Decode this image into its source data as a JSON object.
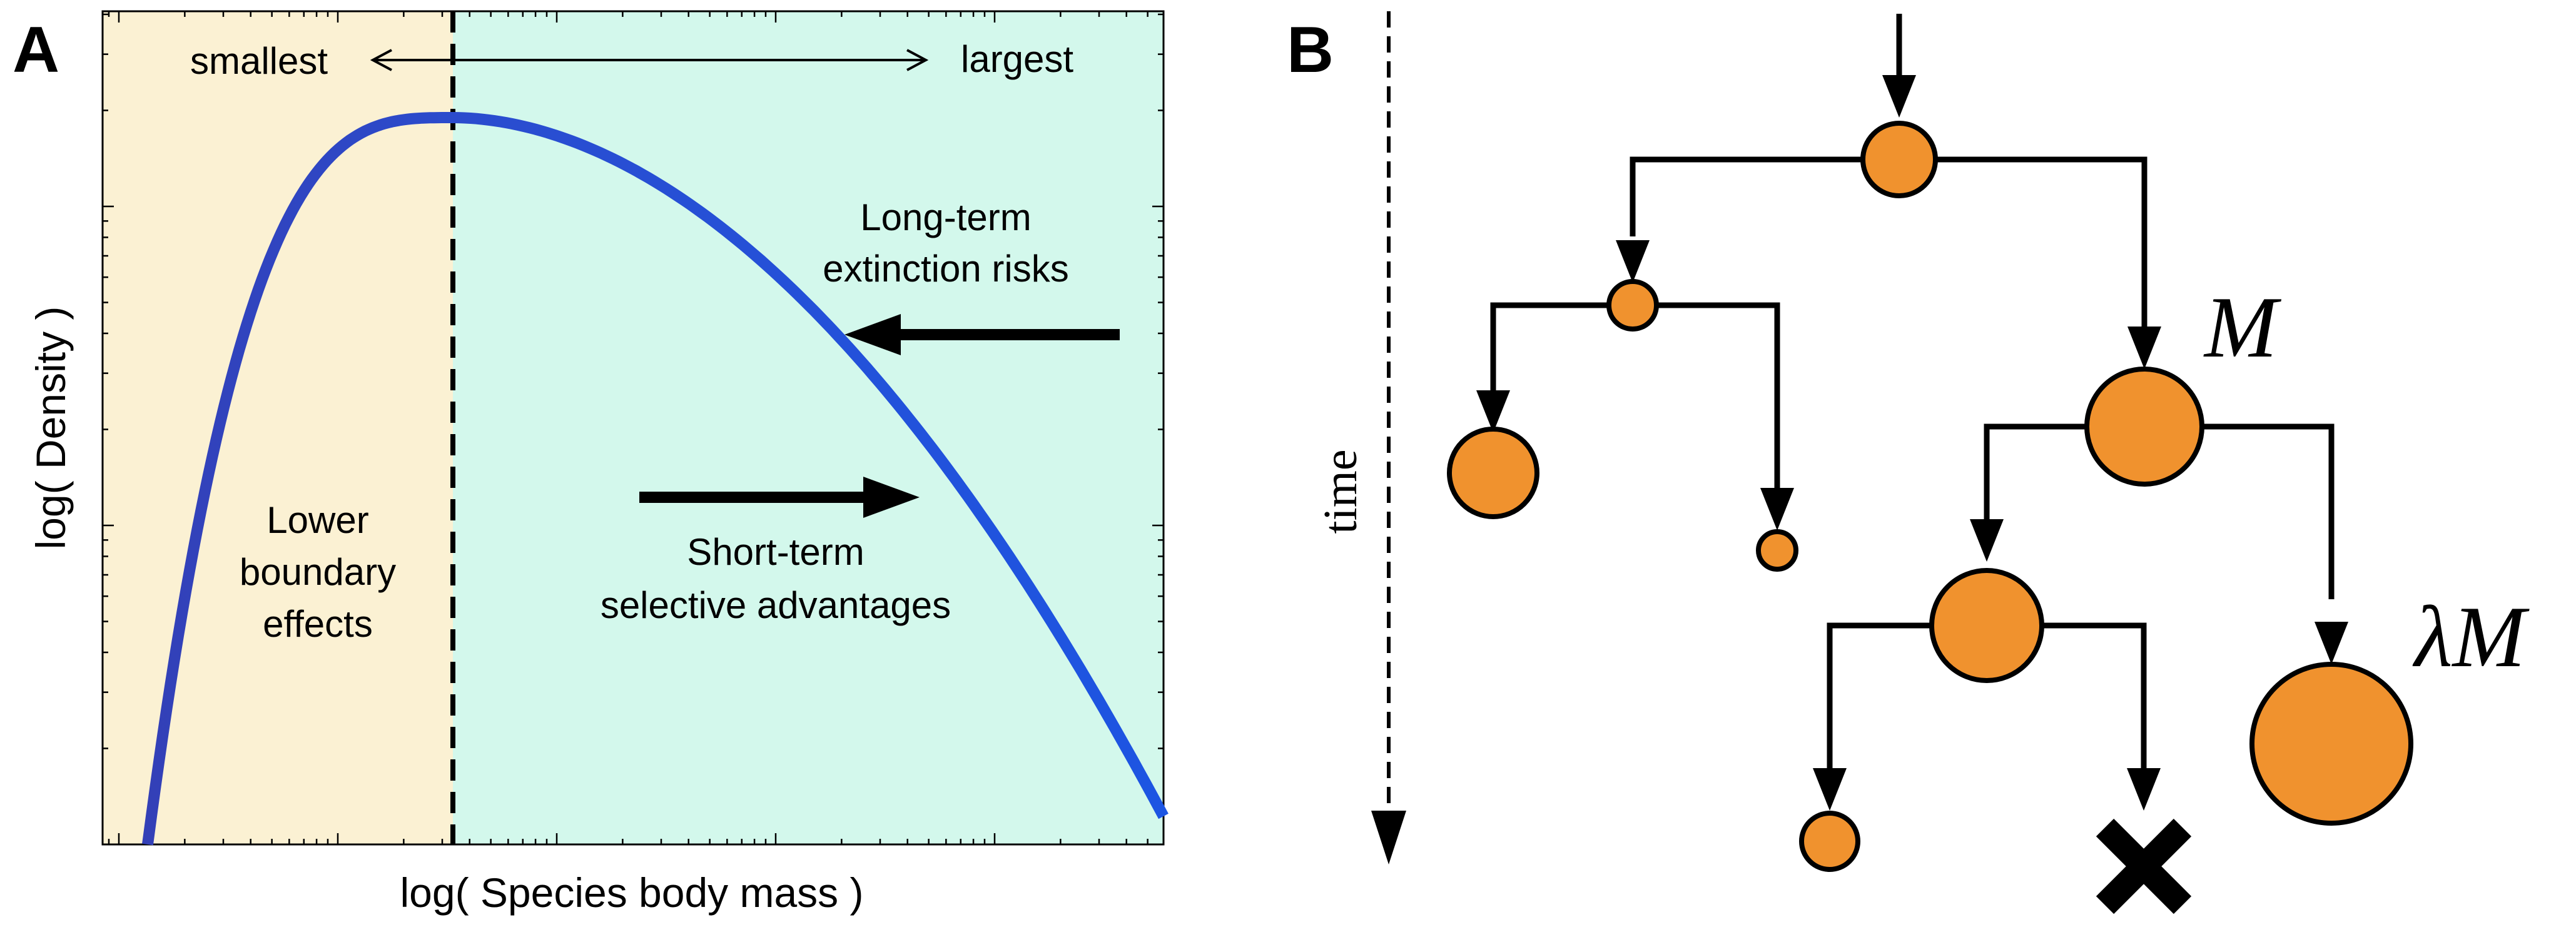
{
  "panel_a": {
    "label": "A",
    "xlabel": "log( Species body mass )",
    "ylabel": "log( Density )",
    "smallest": "smallest",
    "largest": "largest",
    "lower_boundary": [
      "Lower",
      "boundary",
      "effects"
    ],
    "long_term": [
      "Long-term",
      "extinction risks"
    ],
    "short_term": [
      "Short-term",
      "selective advantages"
    ],
    "colors": {
      "left_region": "#fbf1d3",
      "right_region": "#d3f8ec",
      "curve": "#1d55e2",
      "curve_start": "#3340b7"
    }
  },
  "panel_b": {
    "label": "B",
    "time_label": "time",
    "parent_label": "M",
    "descendant_label": "λM",
    "colors": {
      "node_fill": "#f0922e",
      "stroke": "#000000"
    }
  }
}
